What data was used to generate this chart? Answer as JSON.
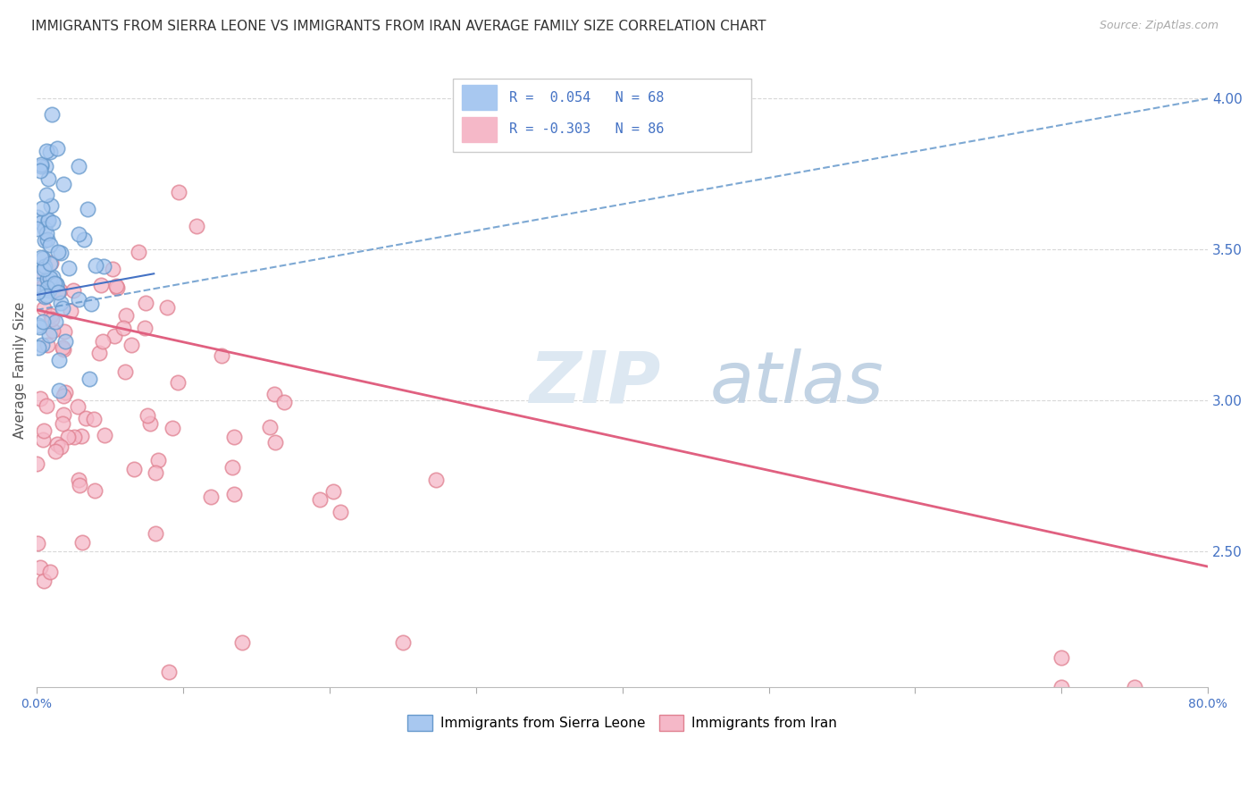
{
  "title": "IMMIGRANTS FROM SIERRA LEONE VS IMMIGRANTS FROM IRAN AVERAGE FAMILY SIZE CORRELATION CHART",
  "source": "Source: ZipAtlas.com",
  "ylabel": "Average Family Size",
  "xlim": [
    0.0,
    0.8
  ],
  "ylim": [
    2.05,
    4.15
  ],
  "yticks_right": [
    2.5,
    3.0,
    3.5,
    4.0
  ],
  "xticks": [
    0.0,
    0.1,
    0.2,
    0.3,
    0.4,
    0.5,
    0.6,
    0.7,
    0.8
  ],
  "xtick_labels_visible": [
    "0.0%",
    "",
    "",
    "",
    "",
    "",
    "",
    "",
    "80.0%"
  ],
  "series1_label": "Immigrants from Sierra Leone",
  "series1_color": "#a8c8f0",
  "series1_edge_color": "#6699cc",
  "series1_R": 0.054,
  "series1_N": 68,
  "series2_label": "Immigrants from Iran",
  "series2_color": "#f5b8c8",
  "series2_edge_color": "#e08090",
  "series2_R": -0.303,
  "series2_N": 86,
  "blue_color": "#4472c4",
  "pink_line_color": "#e06080",
  "blue_line_color": "#6699cc",
  "watermark_zip_color": "#d8e8f0",
  "watermark_atlas_color": "#b8cce0",
  "background_color": "#ffffff",
  "grid_color": "#d8d8d8",
  "right_axis_color": "#4472c4",
  "title_fontsize": 11,
  "source_fontsize": 9,
  "legend_box_line1": "R =  0.054   N = 68",
  "legend_box_line2": "R = -0.303   N = 86",
  "trend1_x0": 0.0,
  "trend1_y0": 3.3,
  "trend1_x1": 0.8,
  "trend1_y1": 4.0,
  "trend2_x0": 0.0,
  "trend2_y0": 3.3,
  "trend2_x1": 0.8,
  "trend2_y1": 2.45
}
